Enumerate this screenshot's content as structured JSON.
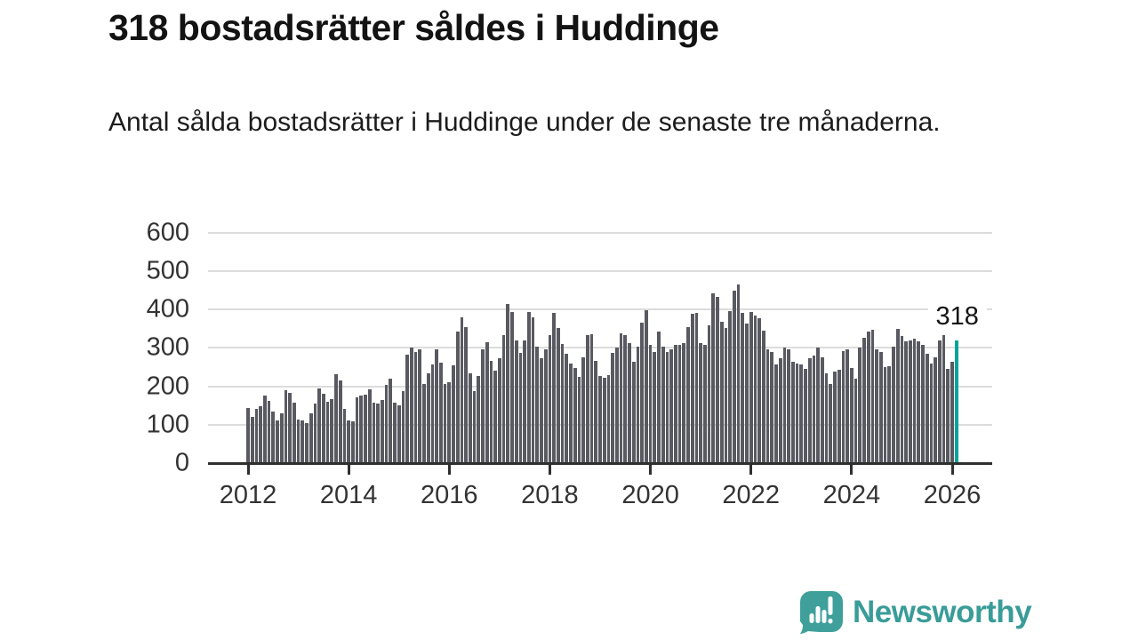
{
  "header": {
    "title": "318 bostadsrätter såldes i Huddinge",
    "subtitle": "Antal sålda bostadsrätter i Huddinge under de senaste tre månaderna."
  },
  "chart_data": {
    "type": "bar",
    "title": "318 bostadsrätter såldes i Huddinge",
    "subtitle": "Antal sålda bostadsrätter i Huddinge under de senaste tre månaderna.",
    "unit": "sålda bostadsrätter (rullande tre månader)",
    "frequency": "monthly",
    "period_start": "2012-01",
    "period_end": "2026-02",
    "xlabel": "",
    "ylabel": "",
    "ylim": [
      0,
      620
    ],
    "grid": "horizontal",
    "y_ticks": [
      0,
      100,
      200,
      300,
      400,
      500,
      600
    ],
    "x_tick_years": [
      "2012",
      "2014",
      "2016",
      "2018",
      "2020",
      "2022",
      "2024",
      "2026"
    ],
    "years": [
      {
        "year": 2012,
        "values": [
          142,
          119,
          138,
          146,
          173,
          160,
          131,
          108,
          127,
          188,
          181,
          154
        ]
      },
      {
        "year": 2013,
        "values": [
          112,
          108,
          102,
          128,
          152,
          191,
          178,
          158,
          165,
          230,
          212,
          140
        ]
      },
      {
        "year": 2014,
        "values": [
          109,
          106,
          168,
          173,
          176,
          190,
          155,
          152,
          163,
          202,
          218,
          155
        ]
      },
      {
        "year": 2015,
        "values": [
          148,
          185,
          281,
          298,
          288,
          294,
          204,
          231,
          254,
          294,
          260,
          204
        ]
      },
      {
        "year": 2016,
        "values": [
          208,
          253,
          341,
          378,
          351,
          231,
          185,
          225,
          295,
          312,
          264,
          238
        ]
      },
      {
        "year": 2017,
        "values": [
          270,
          332,
          413,
          392,
          318,
          285,
          316,
          392,
          377,
          301,
          270,
          293
        ]
      },
      {
        "year": 2018,
        "values": [
          330,
          390,
          349,
          307,
          282,
          256,
          245,
          222,
          274,
          330,
          333,
          264
        ]
      },
      {
        "year": 2019,
        "values": [
          224,
          220,
          228,
          285,
          299,
          336,
          330,
          310,
          261,
          302,
          364,
          397
        ]
      },
      {
        "year": 2020,
        "values": [
          305,
          287,
          340,
          301,
          287,
          293,
          305,
          305,
          310,
          353,
          387,
          390
        ]
      },
      {
        "year": 2021,
        "values": [
          310,
          305,
          356,
          440,
          430,
          366,
          349,
          394,
          446,
          464,
          390,
          361
        ]
      },
      {
        "year": 2022,
        "values": [
          391,
          382,
          376,
          343,
          293,
          287,
          255,
          272,
          299,
          293,
          261,
          258
        ]
      },
      {
        "year": 2023,
        "values": [
          255,
          243,
          270,
          278,
          299,
          274,
          231,
          204,
          235,
          241,
          290,
          295
        ]
      },
      {
        "year": 2024,
        "values": [
          245,
          218,
          299,
          324,
          340,
          345,
          293,
          287,
          247,
          250,
          302,
          347
        ]
      },
      {
        "year": 2025,
        "values": [
          328,
          314,
          318,
          322,
          314,
          305,
          282,
          256,
          274,
          316,
          330,
          243
        ]
      },
      {
        "year": 2026,
        "values": [
          261,
          318
        ]
      }
    ],
    "highlight": {
      "label": "318",
      "value": 318,
      "position": "last-bar"
    },
    "colors": {
      "bar": "#595961",
      "highlight": "#00a49b",
      "grid": "#dcdcdc",
      "axis": "#2f2f2f",
      "tick_label": "#333333",
      "annotation": "#141414"
    }
  },
  "footer": {
    "brand": "Newsworthy",
    "brand_color": "#3a9c98",
    "logo_icon": "speech-bubble-with-bar-chart-and-exclamation"
  }
}
